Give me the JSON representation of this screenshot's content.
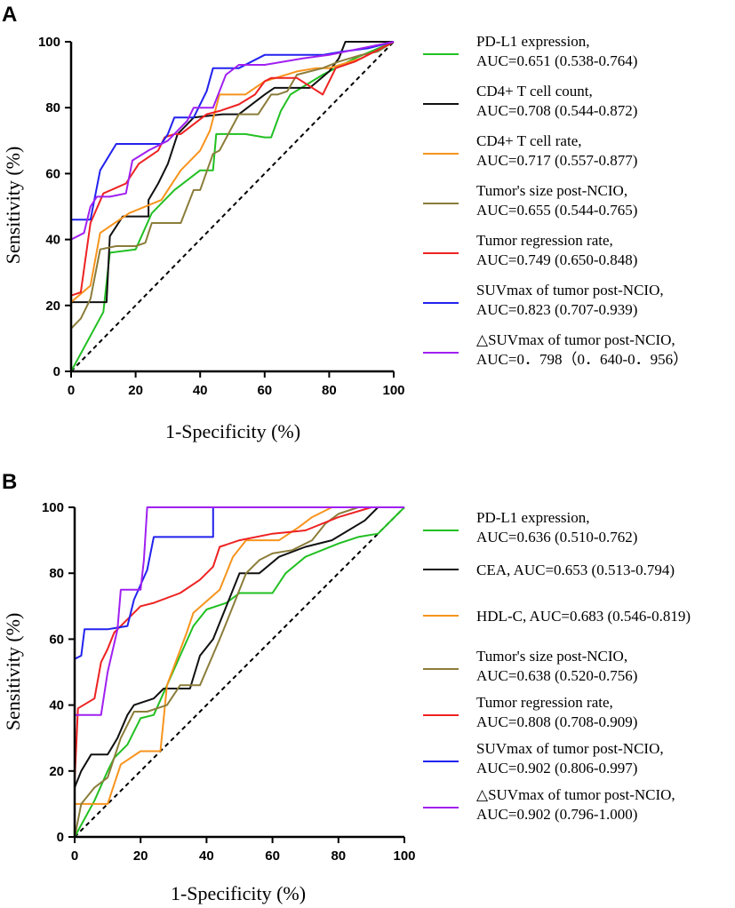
{
  "chart_data": [
    {
      "type": "line",
      "panel": "A",
      "xlabel": "1-Specificity (%)",
      "ylabel": "Sensitivity (%)",
      "xlim": [
        0,
        100
      ],
      "ylim": [
        0,
        100
      ],
      "xticks": [
        "0",
        "20",
        "40",
        "60",
        "80",
        "100"
      ],
      "yticks": [
        "0",
        "20",
        "40",
        "60",
        "80",
        "100"
      ],
      "reference_line": "diagonal",
      "series": [
        {
          "name": "PD-L1 expression,",
          "auc": "AUC=0.651 (0.538-0.764)",
          "color": "#22c022",
          "points": [
            [
              0,
              0
            ],
            [
              10,
              18
            ],
            [
              12,
              36
            ],
            [
              20,
              37
            ],
            [
              25,
              48
            ],
            [
              32,
              55
            ],
            [
              40,
              61
            ],
            [
              44,
              61
            ],
            [
              45,
              72
            ],
            [
              54,
              72
            ],
            [
              60,
              71
            ],
            [
              62,
              71
            ],
            [
              65,
              79
            ],
            [
              68,
              84
            ],
            [
              78,
              90
            ],
            [
              88,
              95
            ],
            [
              100,
              100
            ]
          ]
        },
        {
          "name": "CD4+ T cell count,",
          "auc": "AUC=0.708 (0.544-0.872)",
          "color": "#111111",
          "points": [
            [
              0,
              21
            ],
            [
              6,
              21
            ],
            [
              11,
              21
            ],
            [
              12,
              41
            ],
            [
              16,
              47
            ],
            [
              24,
              47
            ],
            [
              24,
              52
            ],
            [
              27,
              57
            ],
            [
              29,
              61
            ],
            [
              30,
              63
            ],
            [
              33,
              72
            ],
            [
              36,
              75
            ],
            [
              38,
              77
            ],
            [
              47,
              78
            ],
            [
              52,
              78
            ],
            [
              60,
              84
            ],
            [
              63,
              86
            ],
            [
              74,
              86
            ],
            [
              80,
              91
            ],
            [
              83,
              95
            ],
            [
              85,
              100
            ],
            [
              100,
              100
            ]
          ]
        },
        {
          "name": "CD4+ T cell rate,",
          "auc": "AUC=0.717 (0.557-0.877)",
          "color": "#f7941d",
          "points": [
            [
              0,
              21
            ],
            [
              6,
              26
            ],
            [
              9,
              42
            ],
            [
              18,
              48
            ],
            [
              28,
              52
            ],
            [
              34,
              61
            ],
            [
              40,
              67
            ],
            [
              43,
              73
            ],
            [
              46,
              84
            ],
            [
              54,
              84
            ],
            [
              60,
              88
            ],
            [
              70,
              91
            ],
            [
              76,
              92
            ],
            [
              80,
              92
            ],
            [
              90,
              95
            ],
            [
              100,
              100
            ]
          ]
        },
        {
          "name": "Tumor's size post-NCIO,",
          "auc": "AUC=0.655 (0.544-0.765)",
          "color": "#8b7d3a",
          "points": [
            [
              0,
              13
            ],
            [
              3,
              16
            ],
            [
              6,
              22
            ],
            [
              9,
              37
            ],
            [
              14,
              38
            ],
            [
              20,
              38
            ],
            [
              23,
              39
            ],
            [
              25,
              45
            ],
            [
              30,
              45
            ],
            [
              34,
              45
            ],
            [
              38,
              55
            ],
            [
              40,
              55
            ],
            [
              44,
              66
            ],
            [
              46,
              67
            ],
            [
              52,
              78
            ],
            [
              58,
              78
            ],
            [
              62,
              84
            ],
            [
              64,
              84
            ],
            [
              67,
              85
            ],
            [
              70,
              90
            ],
            [
              78,
              92
            ],
            [
              83,
              94
            ],
            [
              90,
              96
            ],
            [
              95,
              97
            ],
            [
              100,
              100
            ]
          ]
        },
        {
          "name": "Tumor regression rate,",
          "auc": "AUC=0.749 (0.650-0.848)",
          "color": "#ee2222",
          "points": [
            [
              0,
              23
            ],
            [
              3,
              24
            ],
            [
              6,
              45
            ],
            [
              10,
              54
            ],
            [
              17,
              57
            ],
            [
              21,
              63
            ],
            [
              27,
              67
            ],
            [
              29,
              71
            ],
            [
              32,
              72
            ],
            [
              34,
              72
            ],
            [
              38,
              75
            ],
            [
              42,
              78
            ],
            [
              46,
              79
            ],
            [
              52,
              81
            ],
            [
              57,
              84
            ],
            [
              60,
              88
            ],
            [
              62,
              89
            ],
            [
              70,
              89
            ],
            [
              78,
              84
            ],
            [
              82,
              92
            ],
            [
              88,
              94
            ],
            [
              100,
              100
            ]
          ]
        },
        {
          "name": "SUVmax of tumor post-NCIO,",
          "auc": "AUC=0.823 (0.707-0.939)",
          "color": "#2222ee",
          "points": [
            [
              0,
              46
            ],
            [
              6,
              46
            ],
            [
              9,
              61
            ],
            [
              14,
              69
            ],
            [
              28,
              69
            ],
            [
              30,
              72
            ],
            [
              32,
              77
            ],
            [
              38,
              77
            ],
            [
              42,
              85
            ],
            [
              44,
              92
            ],
            [
              52,
              92
            ],
            [
              60,
              96
            ],
            [
              78,
              96
            ],
            [
              84,
              97
            ],
            [
              92,
              98
            ],
            [
              100,
              100
            ]
          ]
        },
        {
          "name": "△SUVmax of tumor post-NCIO,",
          "auc": "AUC=0．798（0．640-0．956）",
          "color": "#a020f0",
          "points": [
            [
              0,
              40
            ],
            [
              4,
              42
            ],
            [
              6,
              50
            ],
            [
              8,
              53
            ],
            [
              12,
              53
            ],
            [
              17,
              54
            ],
            [
              19,
              64
            ],
            [
              24,
              67
            ],
            [
              30,
              70
            ],
            [
              36,
              76
            ],
            [
              38,
              80
            ],
            [
              44,
              80
            ],
            [
              48,
              90
            ],
            [
              52,
              93
            ],
            [
              60,
              93
            ],
            [
              72,
              95
            ],
            [
              80,
              96
            ],
            [
              100,
              100
            ]
          ]
        }
      ]
    },
    {
      "type": "line",
      "panel": "B",
      "xlabel": "1-Specificity (%)",
      "ylabel": "Sensitivity (%)",
      "xlim": [
        0,
        100
      ],
      "ylim": [
        0,
        100
      ],
      "xticks": [
        "0",
        "20",
        "40",
        "60",
        "80",
        "100"
      ],
      "yticks": [
        "0",
        "20",
        "40",
        "60",
        "80",
        "100"
      ],
      "reference_line": "diagonal",
      "series": [
        {
          "name": "PD-L1 expression,",
          "auc": "AUC=0.636 (0.510-0.762)",
          "color": "#22c022",
          "points": [
            [
              0,
              0
            ],
            [
              6,
              11
            ],
            [
              10,
              20
            ],
            [
              12,
              24
            ],
            [
              16,
              28
            ],
            [
              20,
              36
            ],
            [
              24,
              37
            ],
            [
              28,
              46
            ],
            [
              32,
              55
            ],
            [
              36,
              64
            ],
            [
              40,
              69
            ],
            [
              46,
              71
            ],
            [
              50,
              74
            ],
            [
              60,
              74
            ],
            [
              64,
              80
            ],
            [
              70,
              85
            ],
            [
              80,
              89
            ],
            [
              86,
              91
            ],
            [
              92,
              92
            ],
            [
              100,
              100
            ]
          ]
        },
        {
          "name": "CEA,",
          "auc": "AUC=0.653 (0.513-0.794)",
          "color": "#111111",
          "points": [
            [
              0,
              15
            ],
            [
              2,
              20
            ],
            [
              5,
              25
            ],
            [
              10,
              25
            ],
            [
              13,
              30
            ],
            [
              16,
              37
            ],
            [
              18,
              40
            ],
            [
              24,
              42
            ],
            [
              27,
              45
            ],
            [
              35,
              45
            ],
            [
              38,
              55
            ],
            [
              42,
              60
            ],
            [
              46,
              70
            ],
            [
              50,
              80
            ],
            [
              56,
              80
            ],
            [
              62,
              85
            ],
            [
              70,
              88
            ],
            [
              78,
              90
            ],
            [
              88,
              96
            ],
            [
              92,
              100
            ],
            [
              100,
              100
            ]
          ]
        },
        {
          "name": "HDL-C,",
          "auc": "AUC=0.683 (0.546-0.819)",
          "color": "#f7941d",
          "points": [
            [
              0,
              10
            ],
            [
              4,
              10
            ],
            [
              10,
              10
            ],
            [
              14,
              22
            ],
            [
              20,
              26
            ],
            [
              26,
              26
            ],
            [
              28,
              46
            ],
            [
              34,
              62
            ],
            [
              36,
              68
            ],
            [
              44,
              75
            ],
            [
              48,
              85
            ],
            [
              52,
              90
            ],
            [
              62,
              90
            ],
            [
              68,
              94
            ],
            [
              72,
              97
            ],
            [
              78,
              100
            ],
            [
              100,
              100
            ]
          ]
        },
        {
          "name": "Tumor's size post-NCIO,",
          "auc": "AUC=0.638 (0.520-0.756)",
          "color": "#8b7d3a",
          "points": [
            [
              0,
              0
            ],
            [
              2,
              10
            ],
            [
              6,
              15
            ],
            [
              10,
              18
            ],
            [
              14,
              30
            ],
            [
              18,
              38
            ],
            [
              22,
              38
            ],
            [
              28,
              40
            ],
            [
              32,
              46
            ],
            [
              38,
              46
            ],
            [
              44,
              60
            ],
            [
              46,
              65
            ],
            [
              52,
              80
            ],
            [
              56,
              84
            ],
            [
              60,
              86
            ],
            [
              66,
              87
            ],
            [
              72,
              90
            ],
            [
              76,
              95
            ],
            [
              80,
              98
            ],
            [
              86,
              100
            ],
            [
              100,
              100
            ]
          ]
        },
        {
          "name": "Tumor regression rate,",
          "auc": "AUC=0.808 (0.708-0.909)",
          "color": "#ee2222",
          "points": [
            [
              0,
              17
            ],
            [
              1,
              39
            ],
            [
              6,
              42
            ],
            [
              8,
              53
            ],
            [
              10,
              57
            ],
            [
              12,
              62
            ],
            [
              16,
              66
            ],
            [
              20,
              70
            ],
            [
              24,
              71
            ],
            [
              32,
              74
            ],
            [
              38,
              78
            ],
            [
              42,
              82
            ],
            [
              44,
              88
            ],
            [
              50,
              90
            ],
            [
              60,
              92
            ],
            [
              70,
              93
            ],
            [
              80,
              97
            ],
            [
              90,
              100
            ],
            [
              100,
              100
            ]
          ]
        },
        {
          "name": "SUVmax of tumor post-NCIO,",
          "auc": "AUC=0.902 (0.806-0.997)",
          "color": "#2222ee",
          "points": [
            [
              0,
              54
            ],
            [
              2,
              55
            ],
            [
              3,
              63
            ],
            [
              10,
              63
            ],
            [
              16,
              64
            ],
            [
              18,
              72
            ],
            [
              22,
              81
            ],
            [
              24,
              91
            ],
            [
              42,
              91
            ],
            [
              42,
              100
            ],
            [
              100,
              100
            ]
          ]
        },
        {
          "name": "△SUVmax of tumor post-NCIO,",
          "auc": "AUC=0.902 (0.796-1.000)",
          "color": "#a020f0",
          "points": [
            [
              0,
              37
            ],
            [
              8,
              37
            ],
            [
              10,
              50
            ],
            [
              13,
              63
            ],
            [
              14,
              75
            ],
            [
              20,
              75
            ],
            [
              21,
              84
            ],
            [
              22,
              100
            ],
            [
              100,
              100
            ]
          ]
        }
      ]
    }
  ]
}
